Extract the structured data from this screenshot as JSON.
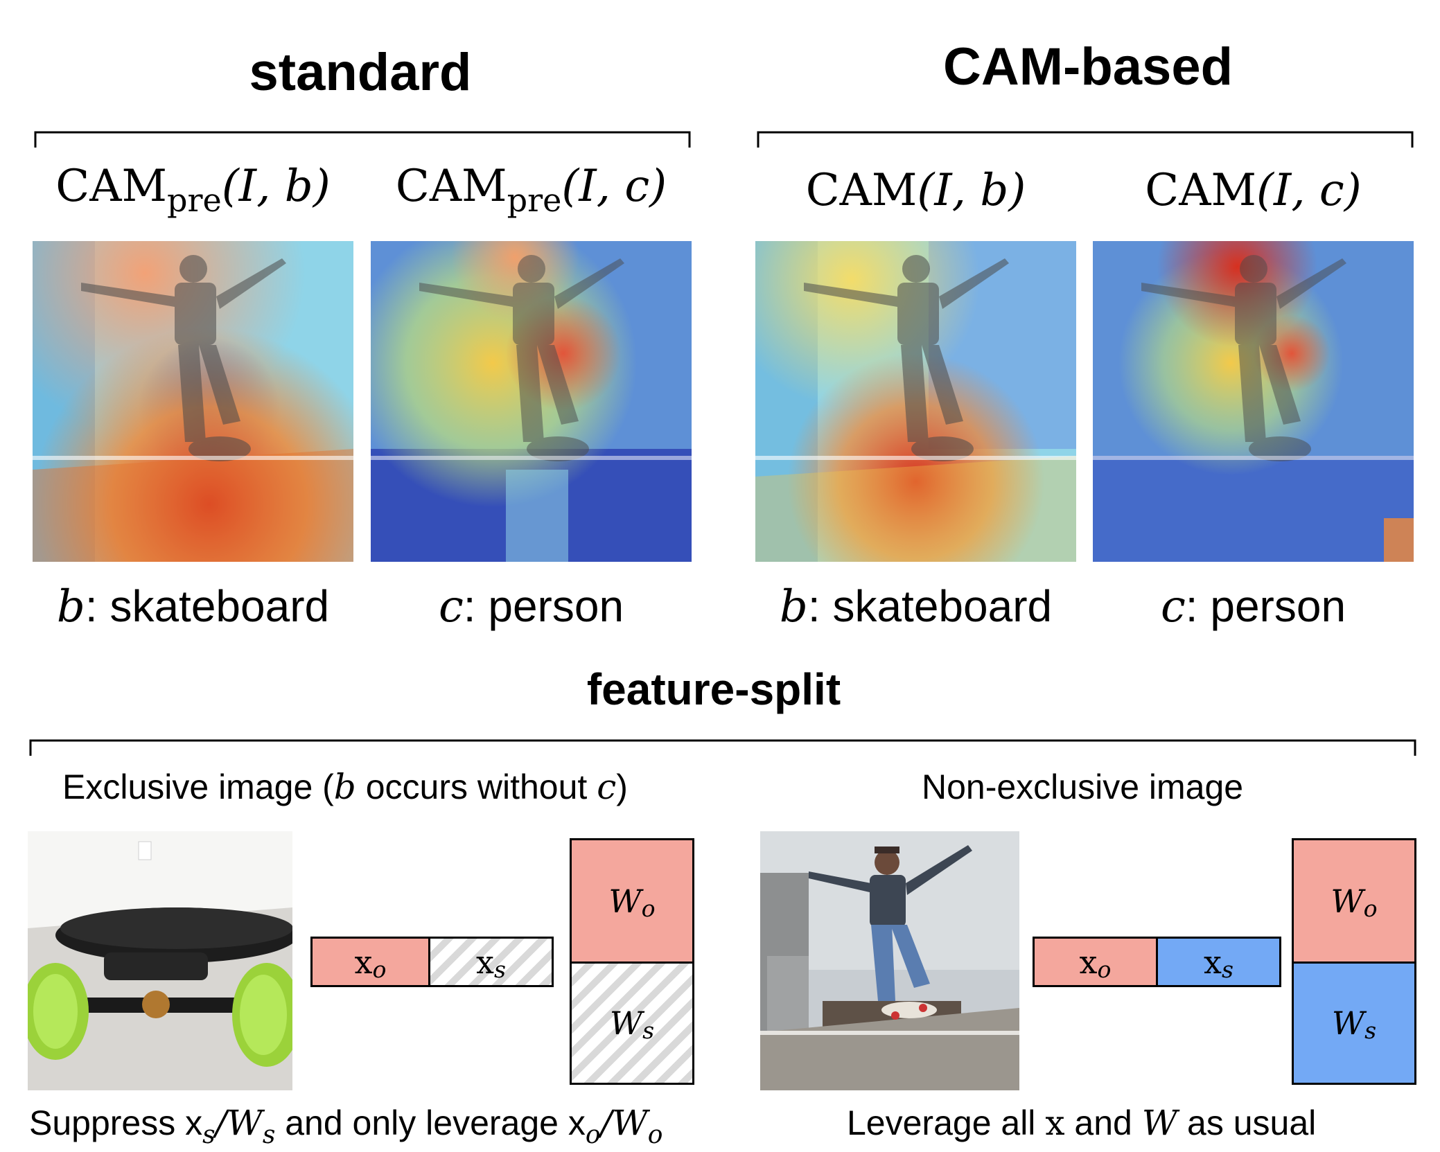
{
  "headings": {
    "standard": "standard",
    "cam_based": "CAM-based",
    "feature_split": "feature-split"
  },
  "cam_titles": {
    "std_b": {
      "base": "CAM",
      "sub": "pre",
      "args": "(I, b)"
    },
    "std_c": {
      "base": "CAM",
      "sub": "pre",
      "args": "(I, c)"
    },
    "cam_b": {
      "base": "CAM",
      "args": "(I, b)"
    },
    "cam_c": {
      "base": "CAM",
      "args": "(I, c)"
    }
  },
  "class_labels": {
    "b": {
      "var": "b",
      "name": ": skateboard"
    },
    "c": {
      "var": "c",
      "name": ": person"
    }
  },
  "feature_split": {
    "exclusive": {
      "caption_pre": "Exclusive image (",
      "caption_b": "b",
      "caption_mid": " occurs without ",
      "caption_c": "c",
      "caption_post": ")",
      "bottom": {
        "pre": "Suppress x",
        "s1": "s",
        "slash1": "/W",
        "s2": "s",
        "mid": " and only leverage x",
        "o1": "o",
        "slash2": "/W",
        "o2": "o"
      }
    },
    "non_exclusive": {
      "caption": "Non-exclusive image",
      "bottom": {
        "pre": "Leverage all ",
        "x": "x",
        "and": " and ",
        "w": "W",
        "post": " as usual"
      }
    },
    "vectors": {
      "xo": {
        "base": "x",
        "sub": "o"
      },
      "xs": {
        "base": "x",
        "sub": "s"
      },
      "wo": {
        "base": "W",
        "sub": "o"
      },
      "ws": {
        "base": "W",
        "sub": "s"
      }
    }
  },
  "colors": {
    "object": "#f4a79d",
    "shared": "#73a9f5",
    "lime": "#a8e040"
  }
}
